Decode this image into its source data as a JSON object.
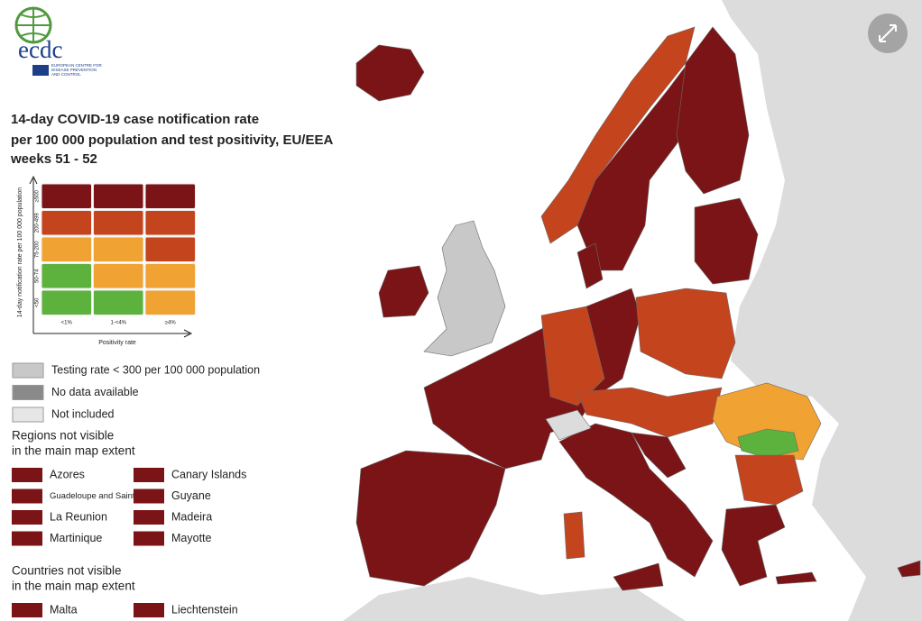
{
  "logo": {
    "name": "ecdc",
    "subtitle": "EUROPEAN CENTRE FOR DISEASE PREVENTION AND CONTROL"
  },
  "title": [
    "14-day COVID-19 case notification rate",
    "per 100 000 population and test positivity, EU/EEA",
    "weeks 51 - 52"
  ],
  "matrix": {
    "y_axis_label": "14-day notification rate per 100 000 population",
    "x_axis_label": "Positivity rate",
    "row_labels": [
      "≥500",
      "200-499",
      "75-200",
      "50-74",
      "<50"
    ],
    "column_labels": [
      "<1%",
      "1-<4%",
      "≥4%"
    ],
    "cell_colors": [
      [
        "#7b1416",
        "#7b1416",
        "#7b1416"
      ],
      [
        "#c4441d",
        "#c4441d",
        "#c4441d"
      ],
      [
        "#f0a232",
        "#f0a232",
        "#c4441d"
      ],
      [
        "#5cb23c",
        "#f0a232",
        "#f0a232"
      ],
      [
        "#5cb23c",
        "#5cb23c",
        "#f0a232"
      ]
    ]
  },
  "legend": [
    {
      "label": "Testing rate < 300 per 100 000 population",
      "color": "#c8c8c8"
    },
    {
      "label": "No data available",
      "color": "#8a8a8a"
    },
    {
      "label": "Not included",
      "color": "#e6e6e6"
    }
  ],
  "regions": {
    "heading": [
      "Regions not visible",
      "in the main map extent"
    ],
    "items": [
      "Azores",
      "Canary Islands",
      "Guadeloupe and Saint Martin",
      "Guyane",
      "La Reunion",
      "Madeira",
      "Martinique",
      "Mayotte"
    ]
  },
  "countries": {
    "heading": [
      "Countries not visible",
      "in the main map extent"
    ],
    "items": [
      "Malta",
      "Liechtenstein"
    ]
  }
}
